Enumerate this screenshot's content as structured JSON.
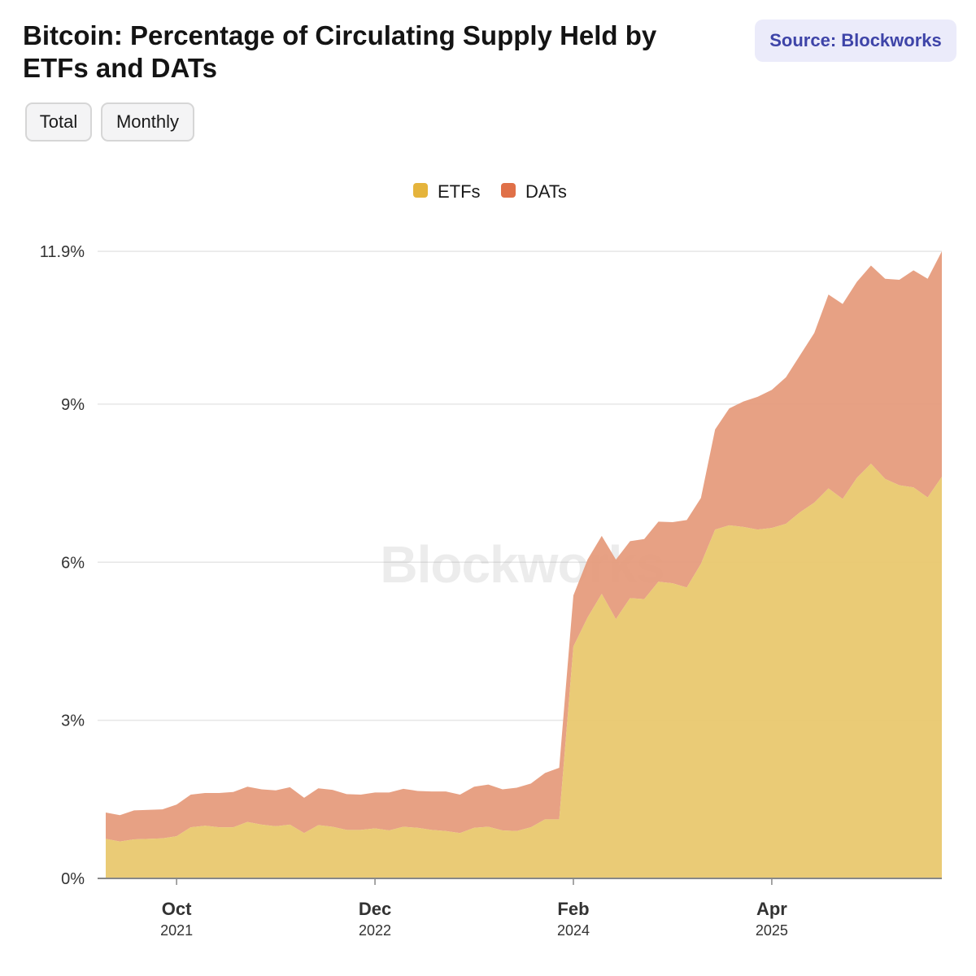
{
  "header": {
    "title": "Bitcoin: Percentage of Circulating Supply Held by ETFs and DATs",
    "source_label": "Source: Blockworks",
    "buttons": [
      "Total",
      "Monthly"
    ]
  },
  "watermark": "Blockworks",
  "colors": {
    "etf_fill": "#e8c76c",
    "dat_fill": "#e59a7b",
    "etf_legend": "#e5b43c",
    "dat_legend": "#e07048",
    "grid": "#e6e6e6",
    "axis": "#888888"
  },
  "chart_data": {
    "type": "area",
    "stacked": true,
    "title": "Bitcoin: Percentage of Circulating Supply Held by ETFs and DATs",
    "legend_position": "top-center",
    "grid": true,
    "ylim": [
      0,
      11.9
    ],
    "y_ticks": [
      {
        "value": 0,
        "label": "0%"
      },
      {
        "value": 3,
        "label": "3%"
      },
      {
        "value": 6,
        "label": "6%"
      },
      {
        "value": 9,
        "label": "9%"
      },
      {
        "value": 11.9,
        "label": "11.9%"
      }
    ],
    "x_ticks": [
      {
        "index": 5,
        "month": "Oct",
        "year": "2021"
      },
      {
        "index": 19,
        "month": "Dec",
        "year": "2022"
      },
      {
        "index": 33,
        "month": "Feb",
        "year": "2024"
      },
      {
        "index": 47,
        "month": "Apr",
        "year": "2025"
      }
    ],
    "x": [
      "2021-05",
      "2021-06",
      "2021-07",
      "2021-08",
      "2021-09",
      "2021-10",
      "2021-11",
      "2021-12",
      "2022-01",
      "2022-02",
      "2022-03",
      "2022-04",
      "2022-05",
      "2022-06",
      "2022-07",
      "2022-08",
      "2022-09",
      "2022-10",
      "2022-11",
      "2022-12",
      "2023-01",
      "2023-02",
      "2023-03",
      "2023-04",
      "2023-05",
      "2023-06",
      "2023-07",
      "2023-08",
      "2023-09",
      "2023-10",
      "2023-11",
      "2023-12",
      "2024-01",
      "2024-02",
      "2024-03",
      "2024-04",
      "2024-05",
      "2024-06",
      "2024-07",
      "2024-08",
      "2024-09",
      "2024-10",
      "2024-11",
      "2024-12",
      "2025-01",
      "2025-02",
      "2025-03",
      "2025-04",
      "2025-05",
      "2025-06",
      "2025-07",
      "2025-08",
      "2025-09",
      "2025-10",
      "2025-11",
      "2025-12",
      "2026-01",
      "2026-02",
      "2026-03",
      "2026-04"
    ],
    "series": [
      {
        "name": "ETFs",
        "values": [
          0.75,
          0.7,
          0.74,
          0.75,
          0.76,
          0.8,
          0.97,
          1.0,
          0.97,
          0.97,
          1.07,
          1.02,
          0.99,
          1.02,
          0.86,
          1.01,
          0.98,
          0.92,
          0.92,
          0.95,
          0.91,
          0.98,
          0.96,
          0.92,
          0.9,
          0.86,
          0.96,
          0.98,
          0.91,
          0.9,
          0.97,
          1.12,
          1.12,
          4.4,
          4.95,
          5.4,
          4.92,
          5.32,
          5.3,
          5.63,
          5.6,
          5.52,
          5.97,
          6.62,
          6.7,
          6.67,
          6.62,
          6.65,
          6.73,
          6.95,
          7.13,
          7.4,
          7.2,
          7.6,
          7.87,
          7.58,
          7.46,
          7.42,
          7.23,
          7.62
        ]
      },
      {
        "name": "DATs",
        "values": [
          0.5,
          0.5,
          0.55,
          0.55,
          0.55,
          0.6,
          0.62,
          0.62,
          0.65,
          0.67,
          0.67,
          0.67,
          0.68,
          0.71,
          0.67,
          0.7,
          0.7,
          0.68,
          0.67,
          0.68,
          0.72,
          0.72,
          0.7,
          0.73,
          0.75,
          0.73,
          0.78,
          0.8,
          0.78,
          0.82,
          0.83,
          0.88,
          0.98,
          0.97,
          1.1,
          1.1,
          1.13,
          1.08,
          1.14,
          1.14,
          1.16,
          1.28,
          1.25,
          1.9,
          2.22,
          2.38,
          2.52,
          2.62,
          2.78,
          2.98,
          3.22,
          3.68,
          3.7,
          3.72,
          3.76,
          3.8,
          3.9,
          4.12,
          4.15,
          4.28
        ]
      }
    ]
  }
}
